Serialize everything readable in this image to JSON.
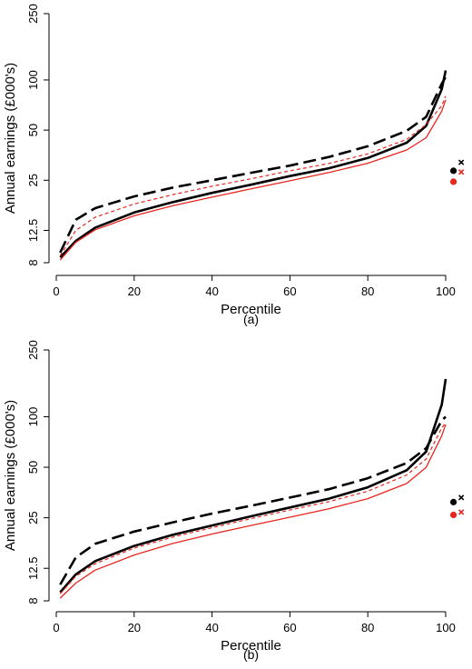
{
  "chart_data": [
    {
      "type": "line",
      "panel_label": "(a)",
      "xlabel": "Percentile",
      "ylabel": "Annual earnings (£000's)",
      "xlim": [
        0,
        100
      ],
      "xticks": [
        0,
        20,
        40,
        60,
        80,
        100
      ],
      "y_scale": "log",
      "ylim": [
        7.4,
        250
      ],
      "yticks": [
        8,
        12.5,
        25,
        50,
        100,
        250
      ],
      "ytick_labels": [
        "8",
        "12.5",
        "25",
        "50",
        "100",
        "250"
      ],
      "x": [
        1,
        5,
        10,
        20,
        30,
        40,
        50,
        60,
        70,
        80,
        90,
        95,
        99,
        100
      ],
      "series": [
        {
          "style": "solid-black-thick",
          "color": "#000000",
          "values": [
            8.6,
            10.8,
            13.0,
            16.0,
            18.5,
            21.0,
            23.5,
            26.5,
            29.5,
            34.0,
            42.0,
            53.0,
            88.0,
            114.0
          ]
        },
        {
          "style": "dashed-black-thick",
          "color": "#000000",
          "values": [
            9.2,
            14.5,
            17.0,
            20.0,
            22.6,
            25.0,
            27.7,
            30.6,
            34.5,
            40.0,
            49.5,
            60.0,
            95.0,
            104.0
          ]
        },
        {
          "style": "dashed-red-thin",
          "color": "#e8251f",
          "values": [
            8.8,
            12.5,
            15.0,
            18.0,
            20.5,
            23.0,
            25.5,
            28.5,
            31.5,
            36.0,
            44.0,
            54.0,
            70.0,
            80.0
          ]
        },
        {
          "style": "solid-red-thin",
          "color": "#e8251f",
          "values": [
            8.3,
            10.6,
            12.6,
            15.3,
            17.6,
            19.8,
            22.2,
            24.8,
            27.8,
            31.6,
            38.0,
            45.0,
            65.0,
            76.0
          ]
        }
      ],
      "markers": [
        {
          "symbol": "circle",
          "color": "#000000",
          "x": 102,
          "y": 28.5
        },
        {
          "symbol": "cross",
          "color": "#000000",
          "x": 104,
          "y": 32.0
        },
        {
          "symbol": "circle",
          "color": "#e8251f",
          "x": 102,
          "y": 24.5
        },
        {
          "symbol": "cross",
          "color": "#e8251f",
          "x": 104,
          "y": 28.0
        }
      ]
    },
    {
      "type": "line",
      "panel_label": "(b)",
      "xlabel": "Percentile",
      "ylabel": "Annual earnings (£000's)",
      "xlim": [
        0,
        100
      ],
      "xticks": [
        0,
        20,
        40,
        60,
        80,
        100
      ],
      "y_scale": "log",
      "ylim": [
        7.4,
        250
      ],
      "yticks": [
        8,
        12.5,
        25,
        50,
        100,
        250
      ],
      "ytick_labels": [
        "8",
        "12.5",
        "25",
        "50",
        "100",
        "250"
      ],
      "x": [
        1,
        5,
        10,
        20,
        30,
        40,
        50,
        60,
        70,
        80,
        90,
        95,
        99,
        100
      ],
      "series": [
        {
          "style": "solid-black-thick",
          "color": "#000000",
          "values": [
            9.0,
            11.5,
            13.8,
            17.0,
            19.8,
            22.5,
            25.5,
            28.8,
            32.5,
            38.0,
            48.0,
            62.0,
            118.0,
            168.0
          ]
        },
        {
          "style": "dashed-black-thick",
          "color": "#000000",
          "values": [
            10.0,
            14.5,
            17.5,
            20.7,
            23.5,
            26.5,
            29.5,
            33.0,
            37.0,
            43.0,
            53.0,
            65.0,
            95.0,
            100.0
          ]
        },
        {
          "style": "dashed-red-thin",
          "color": "#e8251f",
          "values": [
            8.8,
            11.2,
            13.3,
            16.5,
            19.2,
            21.8,
            24.7,
            27.8,
            31.2,
            36.0,
            45.0,
            56.0,
            86.0,
            92.0
          ]
        },
        {
          "style": "solid-red-thin",
          "color": "#e8251f",
          "values": [
            8.3,
            10.2,
            12.2,
            15.0,
            17.6,
            20.0,
            22.5,
            25.2,
            28.3,
            32.5,
            40.0,
            50.0,
            77.0,
            90.0
          ]
        }
      ],
      "markers": [
        {
          "symbol": "circle",
          "color": "#000000",
          "x": 102,
          "y": 31.0
        },
        {
          "symbol": "cross",
          "color": "#000000",
          "x": 104,
          "y": 33.0
        },
        {
          "symbol": "circle",
          "color": "#e8251f",
          "x": 102,
          "y": 26.0
        },
        {
          "symbol": "cross",
          "color": "#e8251f",
          "x": 104,
          "y": 27.0
        }
      ]
    }
  ]
}
